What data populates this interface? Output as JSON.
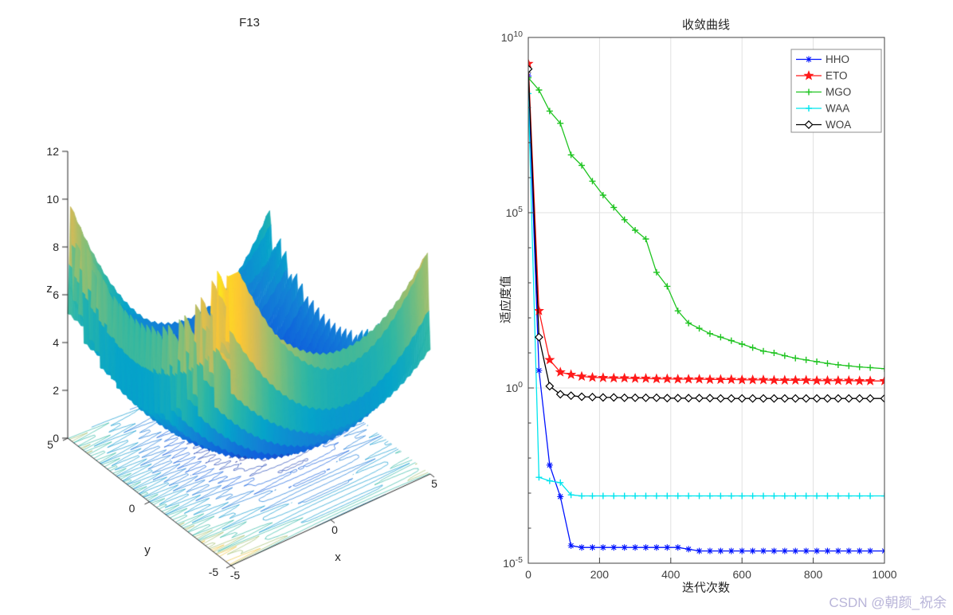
{
  "page": {
    "background": "#ffffff",
    "watermark": {
      "text": "CSDN @朝颜_祝余",
      "color": "#b9b5d9"
    }
  },
  "chart_data": [
    {
      "id": "f13-surface",
      "type": "surface",
      "title": "F13",
      "xlabel": "x",
      "ylabel": "y",
      "zlabel": "z",
      "x_range": [
        -5,
        5
      ],
      "y_range": [
        -5,
        5
      ],
      "z_range": [
        0,
        12
      ],
      "x_ticks": [
        -5,
        0,
        5
      ],
      "y_ticks": [
        5,
        0,
        -5
      ],
      "z_ticks": [
        0,
        2,
        4,
        6,
        8,
        10,
        12
      ],
      "colormap": "parula",
      "surface_formula": "z = 0.1*(sin(3*pi*x)^2 + (x-1)^2*(1+sin(3*pi*y)^2) + (y-1)^2*(1+sin(2*pi*y)^2))",
      "contour_projection": true,
      "contour_levels": [
        0.4,
        0.8,
        1.5,
        2.5,
        4,
        6,
        8,
        10
      ],
      "axis_color": "#262626"
    },
    {
      "id": "convergence",
      "type": "line",
      "title": "收敛曲线",
      "xlabel": "迭代次数",
      "ylabel": "适应度值",
      "xlim": [
        0,
        1000
      ],
      "x_ticks": [
        0,
        200,
        400,
        600,
        800,
        1000
      ],
      "y_scale": "log10",
      "ylim_exponents": [
        -5,
        10
      ],
      "y_tick_exponents": [
        10,
        5,
        0,
        -5
      ],
      "grid": true,
      "grid_color": "#e0e0e0",
      "axis_color": "#404040",
      "legend_position": "top-right",
      "x": [
        0,
        30,
        60,
        90,
        120,
        150,
        180,
        210,
        240,
        270,
        300,
        330,
        360,
        390,
        420,
        450,
        480,
        510,
        540,
        570,
        600,
        630,
        660,
        690,
        720,
        750,
        780,
        810,
        840,
        870,
        900,
        930,
        960,
        1000
      ],
      "series": [
        {
          "name": "HHO",
          "color": "#0013ff",
          "marker": "asterisk",
          "log10_values": [
            8.9,
            0.5,
            -2.2,
            -3.1,
            -4.5,
            -4.55,
            -4.55,
            -4.55,
            -4.55,
            -4.55,
            -4.55,
            -4.55,
            -4.55,
            -4.55,
            -4.55,
            -4.6,
            -4.65,
            -4.65,
            -4.65,
            -4.65,
            -4.65,
            -4.65,
            -4.65,
            -4.65,
            -4.65,
            -4.65,
            -4.65,
            -4.65,
            -4.65,
            -4.65,
            -4.65,
            -4.65,
            -4.65,
            -4.65
          ]
        },
        {
          "name": "ETO",
          "color": "#ff1a1a",
          "marker": "pentagram",
          "log10_values": [
            9.25,
            2.2,
            0.8,
            0.45,
            0.38,
            0.33,
            0.3,
            0.29,
            0.28,
            0.28,
            0.27,
            0.27,
            0.26,
            0.26,
            0.25,
            0.25,
            0.25,
            0.24,
            0.24,
            0.24,
            0.23,
            0.23,
            0.23,
            0.22,
            0.22,
            0.22,
            0.22,
            0.21,
            0.21,
            0.21,
            0.21,
            0.2,
            0.2,
            0.2
          ]
        },
        {
          "name": "MGO",
          "color": "#1fc421",
          "marker": "plus",
          "log10_values": [
            8.85,
            8.5,
            7.9,
            7.55,
            6.65,
            6.35,
            5.9,
            5.5,
            5.15,
            4.8,
            4.5,
            4.25,
            3.3,
            2.9,
            2.2,
            1.85,
            1.7,
            1.55,
            1.45,
            1.35,
            1.25,
            1.15,
            1.05,
            1.0,
            0.92,
            0.85,
            0.8,
            0.75,
            0.7,
            0.66,
            0.63,
            0.6,
            0.58,
            0.55
          ]
        },
        {
          "name": "WAA",
          "color": "#00e5ee",
          "marker": "plus",
          "log10_values": [
            8.4,
            -2.55,
            -2.65,
            -2.7,
            -3.05,
            -3.08,
            -3.08,
            -3.08,
            -3.08,
            -3.08,
            -3.08,
            -3.08,
            -3.08,
            -3.08,
            -3.08,
            -3.08,
            -3.08,
            -3.08,
            -3.08,
            -3.08,
            -3.08,
            -3.08,
            -3.08,
            -3.08,
            -3.08,
            -3.08,
            -3.08,
            -3.08,
            -3.08,
            -3.08,
            -3.08,
            -3.08,
            -3.08,
            -3.08
          ]
        },
        {
          "name": "WOA",
          "color": "#000000",
          "marker": "diamond",
          "log10_values": [
            9.1,
            1.45,
            0.05,
            -0.18,
            -0.22,
            -0.25,
            -0.26,
            -0.27,
            -0.27,
            -0.28,
            -0.28,
            -0.28,
            -0.28,
            -0.29,
            -0.29,
            -0.29,
            -0.29,
            -0.29,
            -0.3,
            -0.3,
            -0.3,
            -0.3,
            -0.3,
            -0.3,
            -0.3,
            -0.3,
            -0.3,
            -0.3,
            -0.3,
            -0.3,
            -0.3,
            -0.3,
            -0.3,
            -0.3
          ]
        }
      ]
    }
  ]
}
